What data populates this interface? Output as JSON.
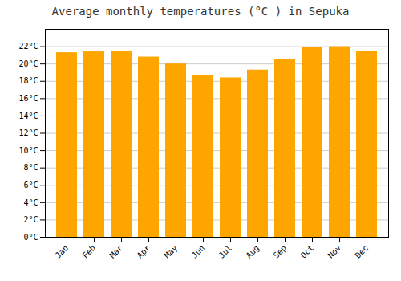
{
  "chart_data": {
    "type": "bar",
    "title": "Average monthly temperatures (°C ) in Sepuka",
    "categories": [
      "Jan",
      "Feb",
      "Mar",
      "Apr",
      "May",
      "Jun",
      "Jul",
      "Aug",
      "Sep",
      "Oct",
      "Nov",
      "Dec"
    ],
    "values": [
      21.3,
      21.4,
      21.5,
      20.8,
      20.0,
      18.7,
      18.4,
      19.3,
      20.5,
      21.9,
      22.0,
      21.5
    ],
    "color": "#FFA500",
    "ylim": [
      0,
      24
    ],
    "yticks": [
      {
        "value": 0,
        "label": "0°C"
      },
      {
        "value": 2,
        "label": "2°C"
      },
      {
        "value": 4,
        "label": "4°C"
      },
      {
        "value": 6,
        "label": "6°C"
      },
      {
        "value": 8,
        "label": "8°C"
      },
      {
        "value": 10,
        "label": "10°C"
      },
      {
        "value": 12,
        "label": "12°C"
      },
      {
        "value": 14,
        "label": "14°C"
      },
      {
        "value": 16,
        "label": "16°C"
      },
      {
        "value": 18,
        "label": "18°C"
      },
      {
        "value": 20,
        "label": "20°C"
      },
      {
        "value": 22,
        "label": "22°C"
      }
    ],
    "grid": true
  }
}
